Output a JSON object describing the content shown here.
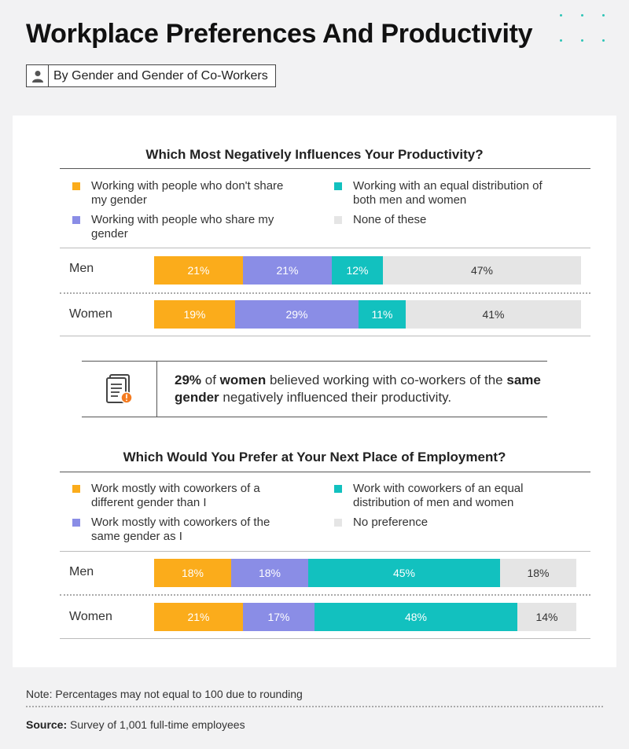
{
  "header": {
    "title": "Workplace Preferences And Productivity",
    "subtitle": "By Gender and Gender of Co-Workers"
  },
  "colors": {
    "orange": "#fbac1b",
    "purple": "#8a8de6",
    "teal": "#12c1bf",
    "gray": "#e5e5e5"
  },
  "callout": {
    "icon": "document-alert-icon",
    "pct": "29%",
    "t1": " of ",
    "women": "women",
    "t2": " believed working with co-workers of the ",
    "same_gender": "same gender",
    "t3": " negatively influenced their productivity."
  },
  "footer": {
    "note": "Note: Percentages may not equal to 100 due to rounding",
    "source_label": "Source:",
    "source_text": " Survey of 1,001 full-time employees"
  },
  "chart_data": [
    {
      "type": "bar",
      "stacked": true,
      "orientation": "horizontal",
      "title": "Which Most Negatively Influences Your Productivity?",
      "categories": [
        "Men",
        "Women"
      ],
      "series": [
        {
          "name": "Working with people who don't share my gender",
          "color": "#fbac1b",
          "values": [
            21,
            19
          ]
        },
        {
          "name": "Working with people who share my gender",
          "color": "#8a8de6",
          "values": [
            21,
            29
          ]
        },
        {
          "name": "Working with an equal distribution of both men and women",
          "color": "#12c1bf",
          "values": [
            12,
            11
          ]
        },
        {
          "name": "None of these",
          "color": "#e5e5e5",
          "values": [
            47,
            41
          ]
        }
      ]
    },
    {
      "type": "bar",
      "stacked": true,
      "orientation": "horizontal",
      "title": "Which Would You Prefer at Your Next Place of Employment?",
      "categories": [
        "Men",
        "Women"
      ],
      "series": [
        {
          "name": "Work mostly with coworkers of a different gender than I",
          "color": "#fbac1b",
          "values": [
            18,
            21
          ]
        },
        {
          "name": "Work mostly with coworkers of the same gender as I",
          "color": "#8a8de6",
          "values": [
            18,
            17
          ]
        },
        {
          "name": "Work with coworkers of an equal distribution of men and women",
          "color": "#12c1bf",
          "values": [
            45,
            48
          ]
        },
        {
          "name": "No preference",
          "color": "#e5e5e5",
          "values": [
            18,
            14
          ]
        }
      ]
    }
  ]
}
